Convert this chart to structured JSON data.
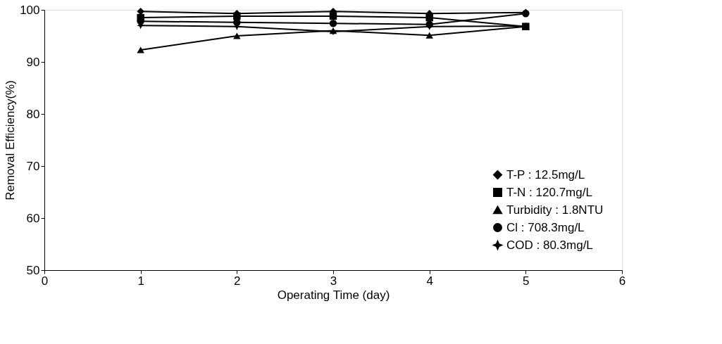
{
  "chart_data": {
    "type": "line",
    "xlabel": "Operating Time (day)",
    "ylabel": "Removal Efficiency(%)",
    "x": [
      1,
      2,
      3,
      4,
      5
    ],
    "xlim": [
      0,
      6
    ],
    "xticks": [
      0,
      1,
      2,
      3,
      4,
      5,
      6
    ],
    "ylim": [
      50,
      100
    ],
    "yticks": [
      50,
      60,
      70,
      80,
      90,
      100
    ],
    "grid": false,
    "legend": "bottom right",
    "line_style": "solid",
    "series": [
      {
        "name": "T-P : 12.5mg/L",
        "color": "#000000",
        "marker": "diamond",
        "values": [
          99.7,
          99.3,
          99.7,
          99.3,
          99.5
        ]
      },
      {
        "name": "T-N : 120.7mg/L",
        "color": "#000000",
        "marker": "square",
        "values": [
          98.5,
          98.8,
          98.8,
          98.5,
          96.8
        ]
      },
      {
        "name": "Turbidity : 1.8NTU",
        "color": "#000000",
        "marker": "triangle",
        "values": [
          92.3,
          95.0,
          96.0,
          95.1,
          96.8
        ]
      },
      {
        "name": "Cl : 708.3mg/L",
        "color": "#000000",
        "marker": "circle",
        "values": [
          97.8,
          97.6,
          97.4,
          97.2,
          99.3
        ]
      },
      {
        "name": "COD : 80.3mg/L",
        "color": "#000000",
        "marker": "star",
        "values": [
          97.0,
          96.8,
          95.8,
          96.8,
          96.9
        ]
      }
    ]
  }
}
